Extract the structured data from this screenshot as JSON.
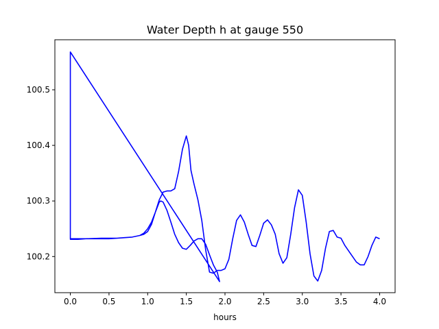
{
  "chart_data": {
    "type": "line",
    "title": "Water Depth h at gauge 550",
    "xlabel": "hours",
    "ylabel": "",
    "xlim": [
      -0.2,
      4.2
    ],
    "ylim": [
      100.135,
      100.59
    ],
    "xticks": [
      0.0,
      0.5,
      1.0,
      1.5,
      2.0,
      2.5,
      3.0,
      3.5,
      4.0
    ],
    "xtick_labels": [
      "0.0",
      "0.5",
      "1.0",
      "1.5",
      "2.0",
      "2.5",
      "3.0",
      "3.5",
      "4.0"
    ],
    "yticks": [
      100.2,
      100.3,
      100.4,
      100.5
    ],
    "ytick_labels": [
      "100.2",
      "100.3",
      "100.4",
      "100.5"
    ],
    "grid": false,
    "line_color": "#0000ff",
    "series": [
      {
        "x": [
          0.0,
          0.0,
          1.93,
          1.9,
          1.85,
          1.8,
          1.75,
          1.7,
          1.65,
          1.6,
          1.55,
          1.5,
          1.45,
          1.4,
          1.35,
          1.3,
          1.25,
          1.2,
          1.17,
          1.15,
          1.1,
          1.05,
          1.0,
          0.95,
          0.9,
          0.8,
          0.7,
          0.6,
          0.5,
          0.4,
          0.3,
          0.2,
          0.1,
          0.0,
          0.0,
          0.2,
          0.4,
          0.6,
          0.8,
          0.9,
          0.95,
          1.0,
          1.05,
          1.1,
          1.15,
          1.2,
          1.25,
          1.3,
          1.35,
          1.4,
          1.45,
          1.5,
          1.53,
          1.56,
          1.6,
          1.65,
          1.7,
          1.75,
          1.8,
          1.85,
          1.9,
          1.95,
          2.0,
          2.05,
          2.1,
          2.15,
          2.2,
          2.25,
          2.3,
          2.35,
          2.4,
          2.45,
          2.5,
          2.55,
          2.6,
          2.65,
          2.7,
          2.75,
          2.8,
          2.85,
          2.9,
          2.95,
          3.0,
          3.05,
          3.1,
          3.15,
          3.2,
          3.25,
          3.3,
          3.35,
          3.4,
          3.45,
          3.5,
          3.55,
          3.6,
          3.65,
          3.7,
          3.75,
          3.8,
          3.85,
          3.9,
          3.95,
          4.0
        ],
        "y": [
          100.232,
          100.568,
          100.155,
          100.172,
          100.185,
          100.203,
          100.222,
          100.232,
          100.232,
          100.228,
          100.22,
          100.213,
          100.215,
          100.225,
          100.24,
          100.262,
          100.283,
          100.298,
          100.3,
          100.298,
          100.28,
          100.258,
          100.245,
          100.24,
          100.238,
          100.235,
          100.234,
          100.233,
          100.232,
          100.232,
          100.232,
          100.232,
          100.231,
          100.231,
          100.232,
          100.232,
          100.233,
          100.233,
          100.235,
          100.238,
          100.242,
          100.25,
          100.262,
          100.28,
          100.302,
          100.316,
          100.318,
          100.318,
          100.322,
          100.353,
          100.393,
          100.417,
          100.4,
          100.355,
          100.33,
          100.302,
          100.265,
          100.212,
          100.172,
          100.17,
          100.175,
          100.175,
          100.178,
          100.195,
          100.232,
          100.265,
          100.275,
          100.262,
          100.24,
          100.22,
          100.218,
          100.238,
          100.26,
          100.266,
          100.257,
          100.24,
          100.205,
          100.188,
          100.198,
          100.24,
          100.288,
          100.32,
          100.31,
          100.262,
          100.205,
          100.165,
          100.156,
          100.175,
          100.215,
          100.245,
          100.247,
          100.235,
          100.233,
          100.22,
          100.21,
          100.2,
          100.19,
          100.185,
          100.185,
          100.2,
          100.22,
          100.235,
          100.232
        ]
      }
    ]
  }
}
